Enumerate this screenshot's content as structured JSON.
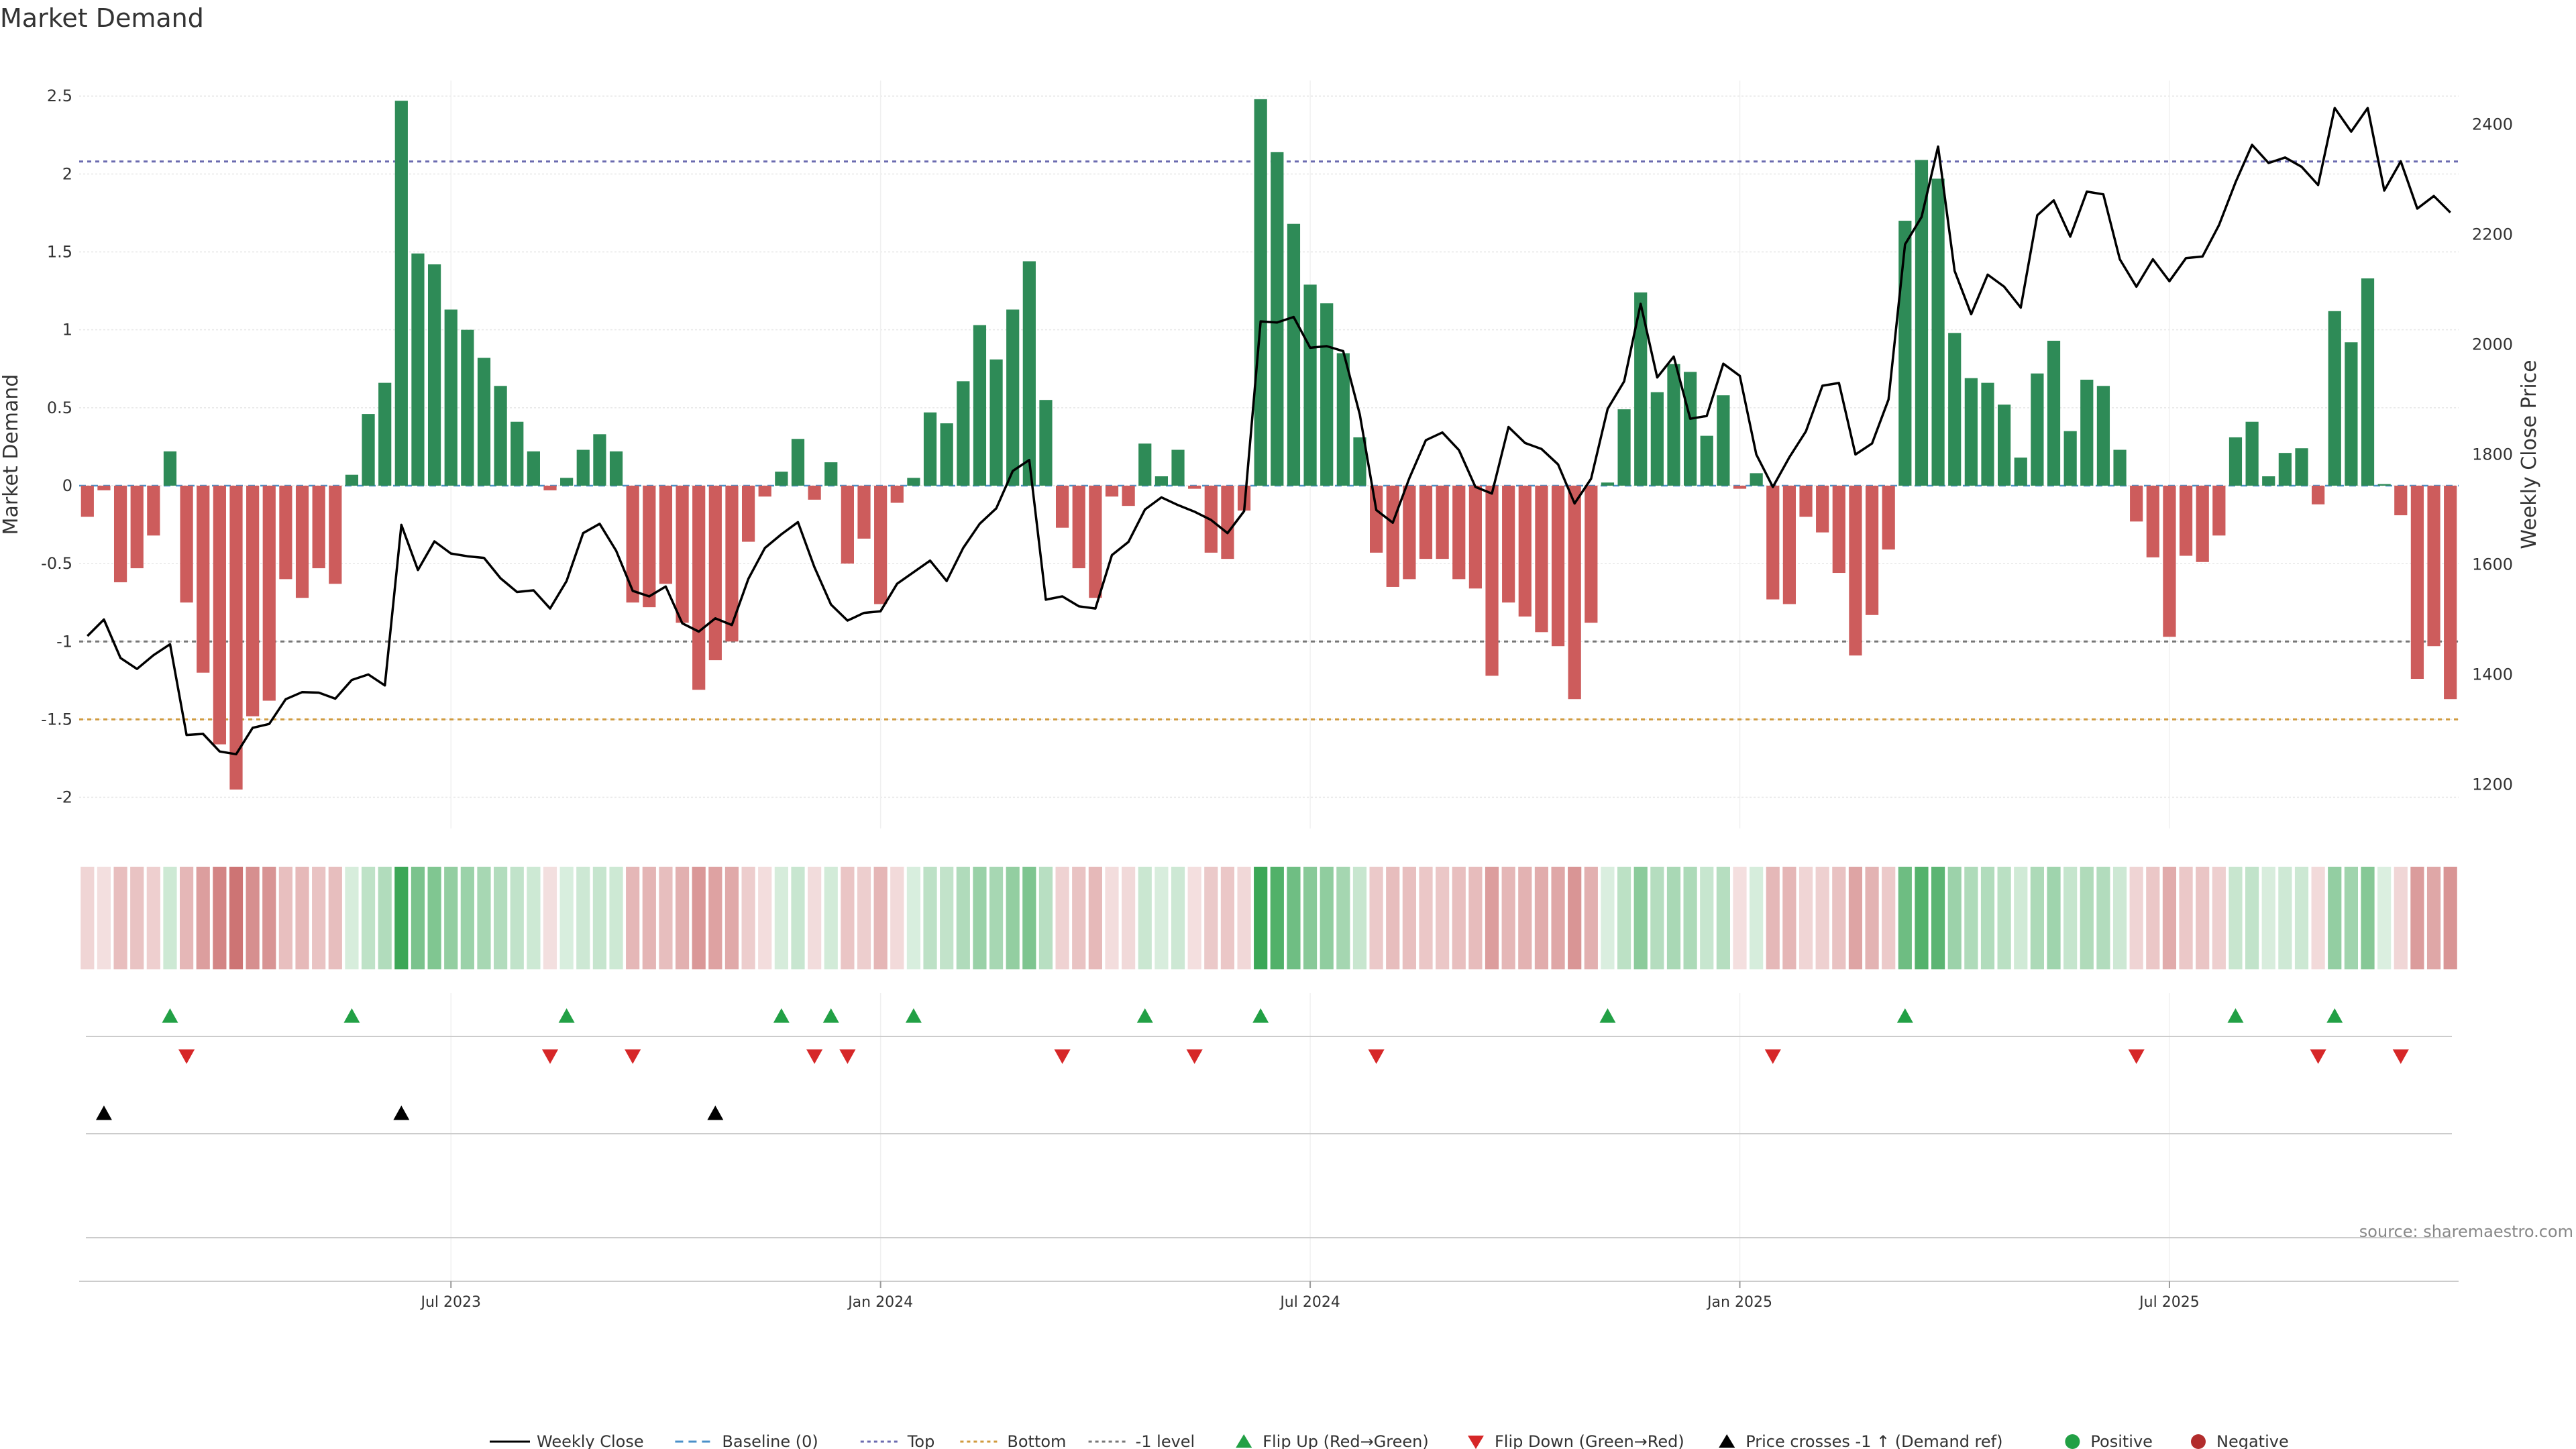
{
  "chart_data": {
    "type": "bar",
    "title": "Market Demand",
    "ylabel": "Market Demand",
    "y2label": "Weekly Close Price",
    "ylim": [
      -2.2,
      2.6
    ],
    "y2lim": [
      1120,
      2480
    ],
    "yticks": [
      {
        "v": 2.5,
        "label": "2.5"
      },
      {
        "v": 2,
        "label": "2"
      },
      {
        "v": 1.5,
        "label": "1.5"
      },
      {
        "v": 1,
        "label": "1"
      },
      {
        "v": 0.5,
        "label": "0.5"
      },
      {
        "v": 0,
        "label": "0"
      },
      {
        "v": -0.5,
        "label": "-0.5"
      },
      {
        "v": -1,
        "label": "-1"
      },
      {
        "v": -1.5,
        "label": "-1.5"
      },
      {
        "v": -2,
        "label": "-2"
      }
    ],
    "y2ticks": [
      {
        "v": 2400,
        "label": "2400"
      },
      {
        "v": 2200,
        "label": "2200"
      },
      {
        "v": 2000,
        "label": "2000"
      },
      {
        "v": 1800,
        "label": "1800"
      },
      {
        "v": 1600,
        "label": "1600"
      },
      {
        "v": 1400,
        "label": "1400"
      },
      {
        "v": 1200,
        "label": "1200"
      }
    ],
    "xticks": [
      {
        "index": 22,
        "label": "Jul 2023"
      },
      {
        "index": 48,
        "label": "Jan 2024"
      },
      {
        "index": 74,
        "label": "Jul 2024"
      },
      {
        "index": 100,
        "label": "Jan 2025"
      },
      {
        "index": 126,
        "label": "Jul 2025"
      }
    ],
    "levels": [
      {
        "name": "Top",
        "value": 2.08,
        "color": "#6b6bb0"
      },
      {
        "name": "Bottom",
        "value": -1.5,
        "color": "#d09a3e"
      },
      {
        "name": "-1 level",
        "value": -1.0,
        "color": "#777777"
      }
    ],
    "series": [
      {
        "name": "Market Demand",
        "values": [
          -0.2,
          -0.03,
          -0.62,
          -0.53,
          -0.32,
          0.22,
          -0.75,
          -1.2,
          -1.66,
          -1.95,
          -1.48,
          -1.38,
          -0.6,
          -0.72,
          -0.53,
          -0.63,
          0.07,
          0.46,
          0.66,
          2.47,
          1.49,
          1.42,
          1.13,
          1.0,
          0.82,
          0.64,
          0.41,
          0.22,
          -0.03,
          0.05,
          0.23,
          0.33,
          0.22,
          -0.75,
          -0.78,
          -0.63,
          -0.88,
          -1.31,
          -1.12,
          -1.0,
          -0.36,
          -0.07,
          0.09,
          0.3,
          -0.09,
          0.15,
          -0.5,
          -0.34,
          -0.76,
          -0.11,
          0.05,
          0.47,
          0.4,
          0.67,
          1.03,
          0.81,
          1.13,
          1.44,
          0.55,
          -0.27,
          -0.53,
          -0.72,
          -0.07,
          -0.13,
          0.27,
          0.06,
          0.23,
          -0.02,
          -0.43,
          -0.47,
          -0.16,
          2.48,
          2.14,
          1.68,
          1.29,
          1.17,
          0.85,
          0.31,
          -0.43,
          -0.65,
          -0.6,
          -0.47,
          -0.47,
          -0.6,
          -0.66,
          -1.22,
          -0.75,
          -0.84,
          -0.94,
          -1.03,
          -1.37,
          -0.88,
          0.02,
          0.49,
          1.24,
          0.6,
          0.78,
          0.73,
          0.32,
          0.58,
          -0.02,
          0.08,
          -0.73,
          -0.76,
          -0.2,
          -0.3,
          -0.56,
          -1.09,
          -0.83,
          -0.41,
          1.7,
          2.09,
          1.97,
          0.98,
          0.69,
          0.66,
          0.52,
          0.18,
          0.72,
          0.93,
          0.35,
          0.68,
          0.64,
          0.23,
          -0.23,
          -0.46,
          -0.97,
          -0.45,
          -0.49,
          -0.32,
          0.31,
          0.41,
          0.06,
          0.21,
          0.24,
          -0.12,
          1.12,
          0.92,
          1.33,
          0.01,
          -0.19,
          -1.24,
          -1.03,
          -1.37
        ]
      },
      {
        "name": "Weekly Close",
        "values": [
          1470,
          1500,
          1430,
          1410,
          1435,
          1455,
          1290,
          1292,
          1260,
          1255,
          1303,
          1310,
          1355,
          1368,
          1367,
          1356,
          1390,
          1400,
          1380,
          1672,
          1590,
          1642,
          1620,
          1615,
          1612,
          1575,
          1550,
          1553,
          1520,
          1570,
          1657,
          1674,
          1625,
          1552,
          1542,
          1560,
          1493,
          1478,
          1502,
          1490,
          1574,
          1630,
          1655,
          1677,
          1595,
          1527,
          1498,
          1512,
          1515,
          1565,
          1586,
          1607,
          1570,
          1630,
          1674,
          1702,
          1770,
          1790,
          1536,
          1542,
          1524,
          1520,
          1617,
          1641,
          1700,
          1722,
          1708,
          1696,
          1681,
          1657,
          1697,
          2042,
          2040,
          2050,
          1994,
          1997,
          1988,
          1873,
          1699,
          1676,
          1757,
          1826,
          1840,
          1808,
          1741,
          1729,
          1850,
          1821,
          1810,
          1782,
          1711,
          1756,
          1883,
          1933,
          2074,
          1940,
          1978,
          1865,
          1870,
          1965,
          1943,
          1800,
          1741,
          1795,
          1842,
          1925,
          1930,
          1800,
          1820,
          1900,
          2182,
          2232,
          2360,
          2134,
          2055,
          2127,
          2105,
          2067,
          2235,
          2262,
          2196,
          2278,
          2273,
          2155,
          2105,
          2155,
          2115,
          2157,
          2160,
          2217,
          2295,
          2363,
          2330,
          2340,
          2323,
          2290,
          2430,
          2387,
          2430,
          2280,
          2333,
          2247,
          2270,
          2240
        ]
      }
    ],
    "flip_up_indices": [
      5,
      16,
      29,
      42,
      45,
      50,
      64,
      71,
      92,
      110,
      130,
      136
    ],
    "flip_down_indices": [
      6,
      28,
      33,
      44,
      46,
      59,
      67,
      78,
      102,
      124,
      135,
      140
    ],
    "price_cross_indices": [
      1,
      19,
      38
    ],
    "legend": [
      {
        "key": "close",
        "label": "Weekly Close"
      },
      {
        "key": "baseline",
        "label": "Baseline (0)"
      },
      {
        "key": "top",
        "label": "Top"
      },
      {
        "key": "bottom",
        "label": "Bottom"
      },
      {
        "key": "minus1",
        "label": "-1 level"
      },
      {
        "key": "flipup",
        "label": "Flip Up (Red→Green)"
      },
      {
        "key": "flipdown",
        "label": "Flip Down (Green→Red)"
      },
      {
        "key": "cross",
        "label": "Price crosses -1 ↑ (Demand ref)"
      },
      {
        "key": "positive",
        "label": "Positive"
      },
      {
        "key": "negative",
        "label": "Negative"
      }
    ],
    "source": "source: sharemaestro.com",
    "colors": {
      "positive": "#2e8b57",
      "negative": "#cd5c5c",
      "close": "#000000",
      "baseline": "#4a90c8",
      "flipup": "#22a045",
      "flipdown": "#d62728",
      "cross": "#000000",
      "grid": "#e6e6e6",
      "heat_pos_strong": "#3aa655",
      "heat_neg_strong": "#c25656"
    }
  }
}
